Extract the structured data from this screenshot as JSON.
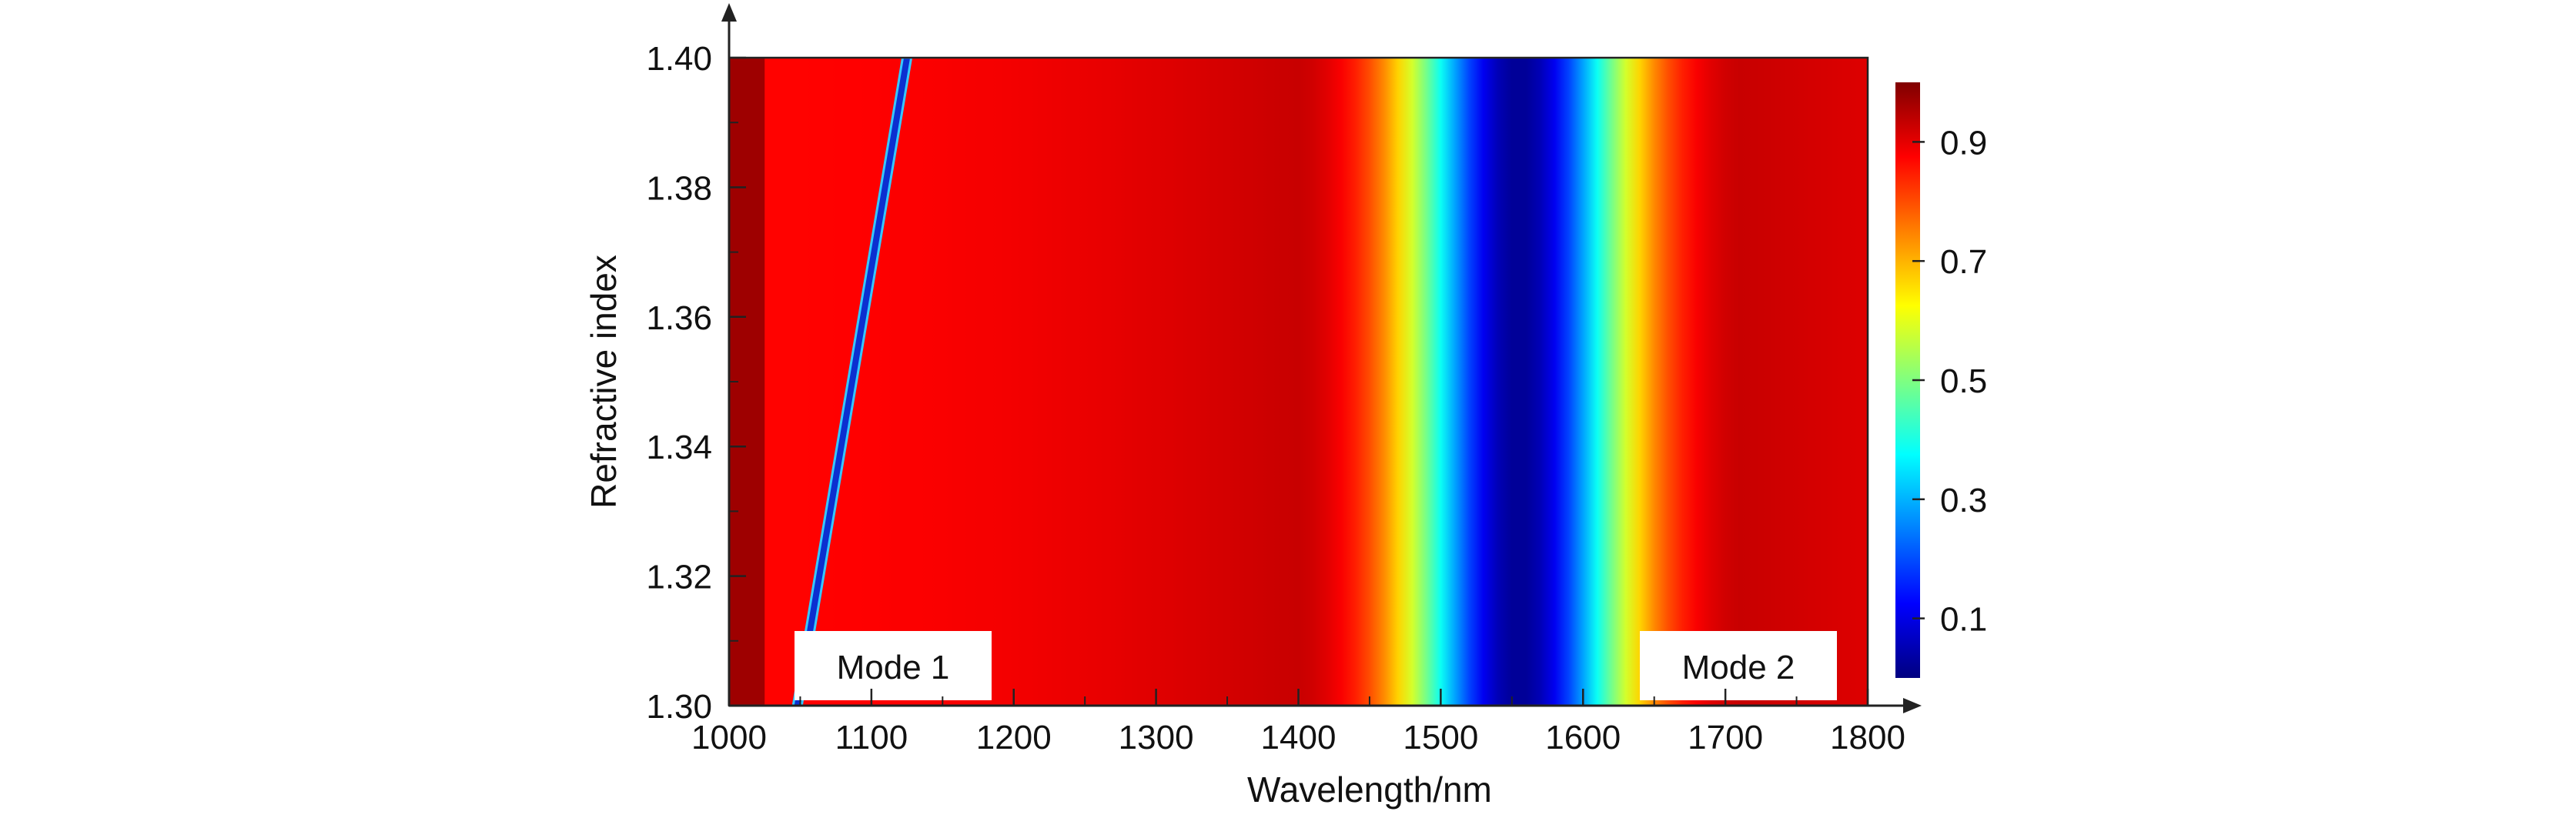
{
  "chart_data": {
    "type": "heatmap",
    "title": "",
    "xlabel": "Wavelength/nm",
    "ylabel": "Refractive index",
    "xlim": [
      1000,
      1800
    ],
    "ylim": [
      1.3,
      1.4
    ],
    "x_ticks": [
      1000,
      1100,
      1200,
      1300,
      1400,
      1500,
      1600,
      1700,
      1800
    ],
    "x_tick_labels": [
      "1000",
      "1100",
      "1200",
      "1300",
      "1400",
      "1500",
      "1600",
      "1700",
      "1800"
    ],
    "y_ticks": [
      1.3,
      1.32,
      1.34,
      1.36,
      1.38,
      1.4
    ],
    "y_tick_labels": [
      "1.30",
      "1.32",
      "1.34",
      "1.36",
      "1.38",
      "1.40"
    ],
    "colorbar": {
      "colormap": "jet",
      "range": [
        0,
        1
      ],
      "ticks": [
        0.1,
        0.3,
        0.5,
        0.7,
        0.9
      ],
      "tick_labels": [
        "0.1",
        "0.3",
        "0.5",
        "0.7",
        "0.9"
      ]
    },
    "features": {
      "background_value": 0.95,
      "mode1": {
        "label": "Mode 1",
        "line": [
          [
            1048,
            1.3
          ],
          [
            1125,
            1.4
          ]
        ],
        "min_value": 0.1,
        "width_nm": 6
      },
      "mode2": {
        "label": "Mode 2",
        "center_nm": 1555,
        "min_value": 0.02,
        "sigma_nm": 55
      }
    },
    "grid": false
  }
}
